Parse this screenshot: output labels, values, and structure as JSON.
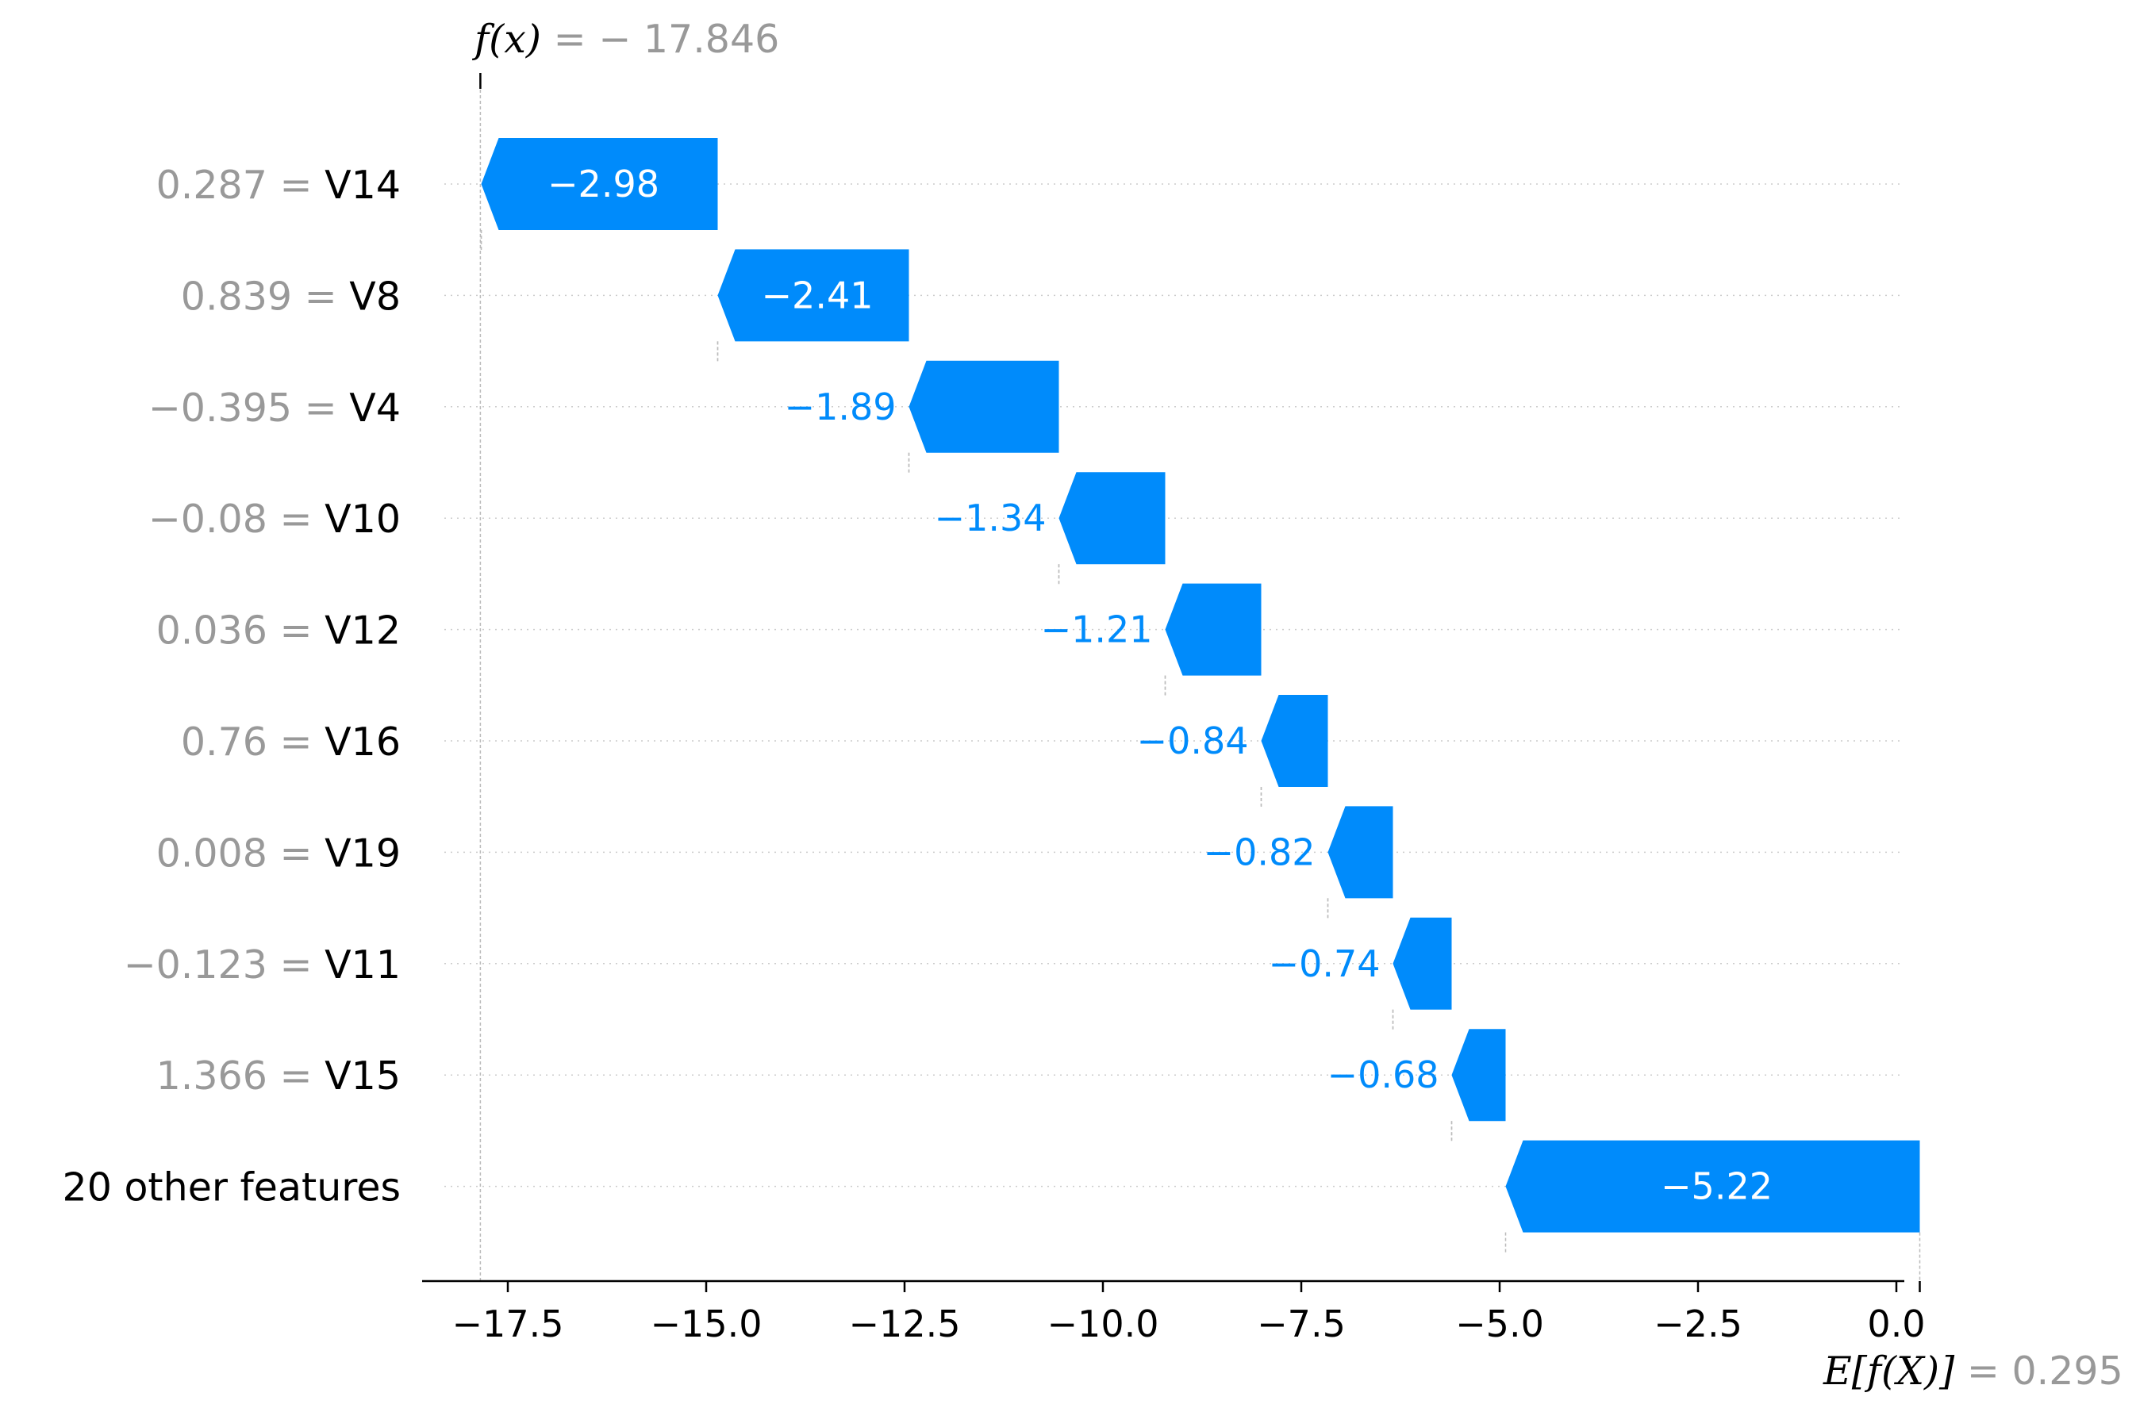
{
  "chart_data": {
    "type": "waterfall",
    "fx_label": "f(x) = − 17.846",
    "fx_value": -17.846,
    "efx_label": "E[f(X)]",
    "efx_value_label": "= 0.295",
    "base_value": 0.295,
    "bar_color": "#008bfb",
    "value_text_color": "#999999",
    "rows": [
      {
        "feature": "V14",
        "value": "0.287",
        "shap": -2.98,
        "label": "−2.98"
      },
      {
        "feature": "V8",
        "value": "0.839",
        "shap": -2.41,
        "label": "−2.41"
      },
      {
        "feature": "V4",
        "value": "−0.395",
        "shap": -1.89,
        "label": "−1.89"
      },
      {
        "feature": "V10",
        "value": "−0.08",
        "shap": -1.34,
        "label": "−1.34"
      },
      {
        "feature": "V12",
        "value": "0.036",
        "shap": -1.21,
        "label": "−1.21"
      },
      {
        "feature": "V16",
        "value": "0.76",
        "shap": -0.84,
        "label": "−0.84"
      },
      {
        "feature": "V19",
        "value": "0.008",
        "shap": -0.82,
        "label": "−0.82"
      },
      {
        "feature": "V11",
        "value": "−0.123",
        "shap": -0.74,
        "label": "−0.74"
      },
      {
        "feature": "V15",
        "value": "1.366",
        "shap": -0.68,
        "label": "−0.68"
      },
      {
        "feature": "20 other features",
        "value": "",
        "shap": -5.22,
        "label": "−5.22"
      }
    ],
    "xlim": [
      -19.0,
      0.5
    ],
    "xticks": [
      -17.5,
      -15.0,
      -12.5,
      -10.0,
      -7.5,
      -5.0,
      -2.5,
      0.0
    ],
    "xtick_labels": [
      "−17.5",
      "−15.0",
      "−12.5",
      "−10.0",
      "−7.5",
      "−5.0",
      "−2.5",
      "0.0"
    ],
    "grid": "horizontal-dotted"
  }
}
